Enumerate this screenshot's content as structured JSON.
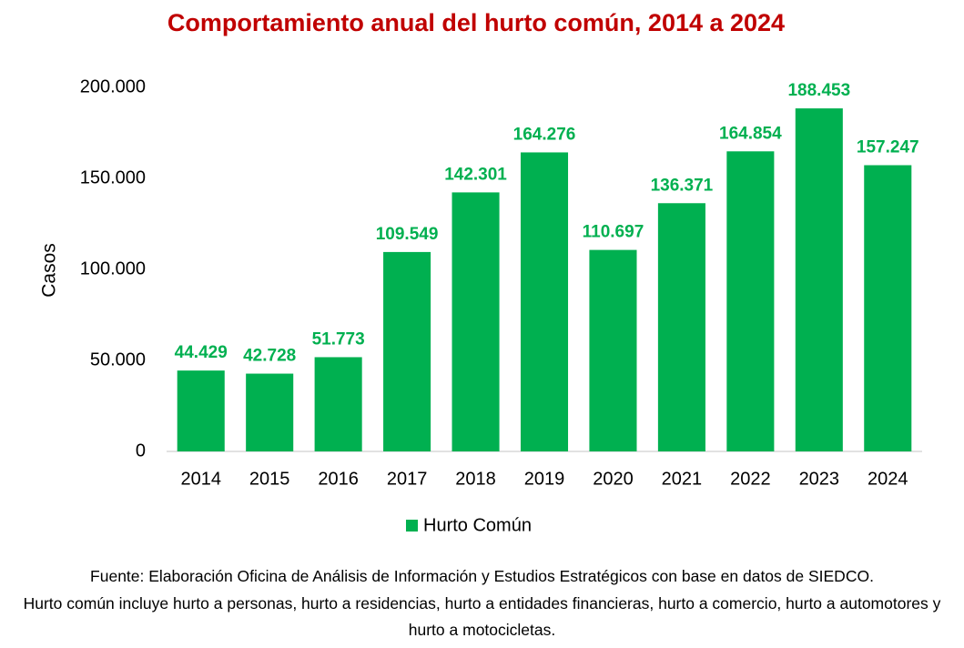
{
  "chart_data": {
    "type": "bar",
    "title": "Comportamiento anual del hurto común, 2014 a 2024",
    "y_label": "Casos",
    "categories": [
      "2014",
      "2015",
      "2016",
      "2017",
      "2018",
      "2019",
      "2020",
      "2021",
      "2022",
      "2023",
      "2024"
    ],
    "series": [
      {
        "name": "Hurto Común",
        "color": "#00b050",
        "values": [
          44429,
          42728,
          51773,
          109549,
          142301,
          164276,
          110697,
          136371,
          164854,
          188453,
          157247
        ],
        "value_labels": [
          "44.429",
          "42.728",
          "51.773",
          "109.549",
          "142.301",
          "164.276",
          "110.697",
          "136.371",
          "164.854",
          "188.453",
          "157.247"
        ]
      }
    ],
    "ylim": [
      0,
      200000
    ],
    "yticks": [
      0,
      {
        "value": 50000,
        "label": "50.000"
      },
      {
        "value": 100000,
        "label": "100.000"
      },
      {
        "value": 150000,
        "label": "150.000"
      },
      {
        "value": 200000,
        "label": "200.000"
      }
    ],
    "grid": false,
    "legend": "bottom",
    "notes": [
      "Fuente: Elaboración Oficina de Análisis de Información y Estudios Estratégicos con base en datos de SIEDCO.",
      "Hurto común incluye hurto a personas, hurto a residencias, hurto a entidades financieras, hurto a comercio, hurto a automotores y hurto a motocicletas."
    ]
  }
}
